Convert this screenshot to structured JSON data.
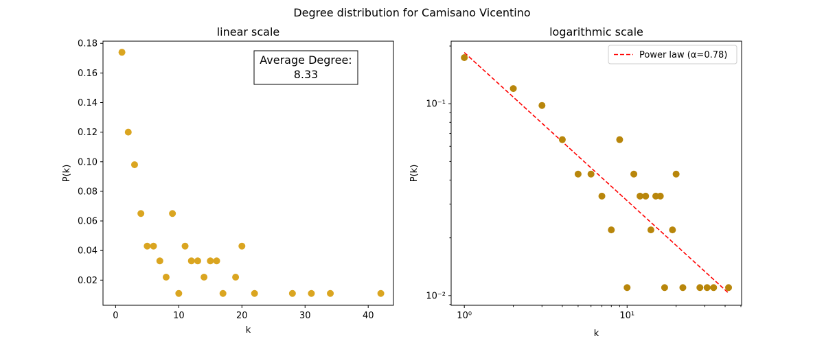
{
  "figure": {
    "title": "Degree distribution for Camisano Vicentino"
  },
  "chart_data": [
    {
      "type": "scatter",
      "title": "linear scale",
      "xlabel": "k",
      "ylabel": "P(k)",
      "xlim": [
        -2,
        44
      ],
      "ylim": [
        0.003,
        0.1815
      ],
      "xticks": [
        0,
        10,
        20,
        30,
        40
      ],
      "yticks": [
        0.02,
        0.04,
        0.06,
        0.08,
        0.1,
        0.12,
        0.14,
        0.16,
        0.18
      ],
      "ytick_labels": [
        "0.02",
        "0.04",
        "0.06",
        "0.08",
        "0.10",
        "0.12",
        "0.14",
        "0.16",
        "0.18"
      ],
      "color": "#daa520",
      "points": [
        [
          1,
          0.174
        ],
        [
          2,
          0.12
        ],
        [
          3,
          0.098
        ],
        [
          4,
          0.065
        ],
        [
          5,
          0.043
        ],
        [
          6,
          0.043
        ],
        [
          7,
          0.033
        ],
        [
          8,
          0.022
        ],
        [
          9,
          0.065
        ],
        [
          10,
          0.011
        ],
        [
          11,
          0.043
        ],
        [
          12,
          0.033
        ],
        [
          13,
          0.033
        ],
        [
          14,
          0.022
        ],
        [
          15,
          0.033
        ],
        [
          16,
          0.033
        ],
        [
          17,
          0.011
        ],
        [
          19,
          0.022
        ],
        [
          20,
          0.043
        ],
        [
          22,
          0.011
        ],
        [
          28,
          0.011
        ],
        [
          31,
          0.011
        ],
        [
          34,
          0.011
        ],
        [
          42,
          0.011
        ]
      ],
      "annotation": {
        "line1": "Average Degree:",
        "line2": "8.33"
      }
    },
    {
      "type": "scatter",
      "title": "logarithmic scale",
      "xlabel": "k",
      "ylabel": "P(k)",
      "xscale": "log",
      "yscale": "log",
      "xlim": [
        0.83,
        50.5
      ],
      "ylim": [
        0.0089,
        0.212
      ],
      "xticks_major": [
        1,
        10
      ],
      "xtick_labels": [
        "10⁰",
        "10¹"
      ],
      "yticks_major": [
        0.01,
        0.1
      ],
      "ytick_labels": [
        "10⁻²",
        "10⁻¹"
      ],
      "color": "#b8860b",
      "points": [
        [
          1,
          0.174
        ],
        [
          2,
          0.12
        ],
        [
          3,
          0.098
        ],
        [
          4,
          0.065
        ],
        [
          5,
          0.043
        ],
        [
          6,
          0.043
        ],
        [
          7,
          0.033
        ],
        [
          8,
          0.022
        ],
        [
          9,
          0.065
        ],
        [
          10,
          0.011
        ],
        [
          11,
          0.043
        ],
        [
          12,
          0.033
        ],
        [
          13,
          0.033
        ],
        [
          14,
          0.022
        ],
        [
          15,
          0.033
        ],
        [
          16,
          0.033
        ],
        [
          17,
          0.011
        ],
        [
          19,
          0.022
        ],
        [
          20,
          0.043
        ],
        [
          22,
          0.011
        ],
        [
          28,
          0.011
        ],
        [
          31,
          0.011
        ],
        [
          34,
          0.011
        ],
        [
          42,
          0.011
        ]
      ],
      "fit": {
        "name": "Power law (α=0.78)",
        "color": "#ff0000",
        "start": [
          1,
          0.185
        ],
        "end": [
          42,
          0.0103
        ]
      },
      "legend_placement": "top-right"
    }
  ]
}
